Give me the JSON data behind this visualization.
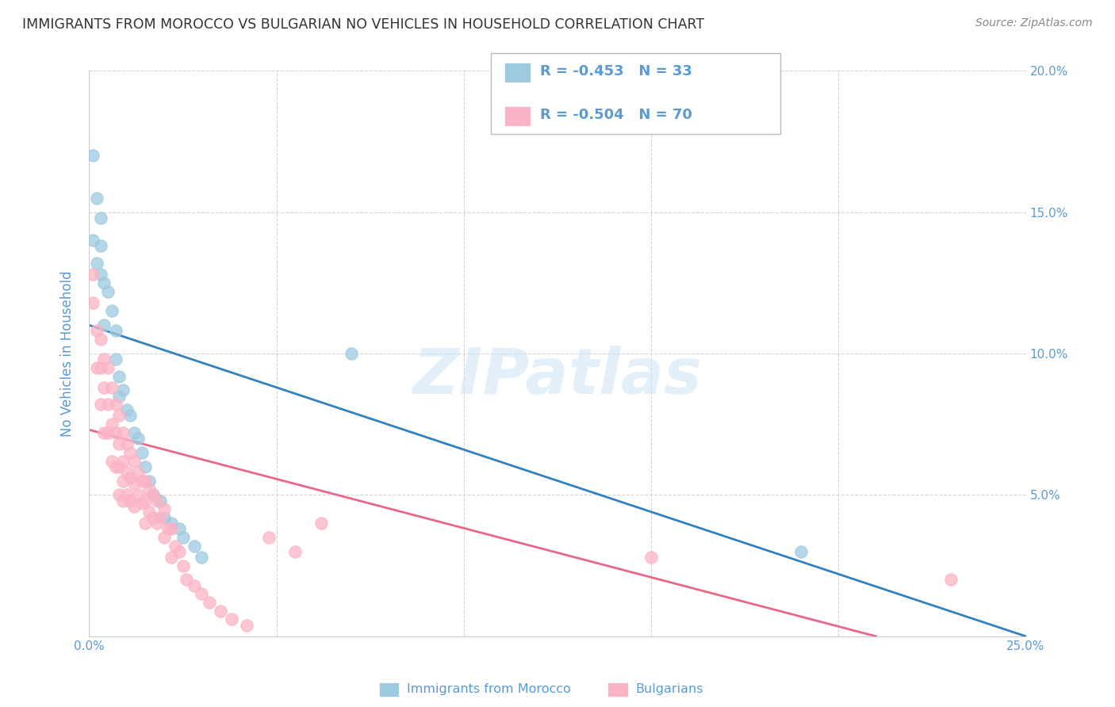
{
  "title": "IMMIGRANTS FROM MOROCCO VS BULGARIAN NO VEHICLES IN HOUSEHOLD CORRELATION CHART",
  "source": "Source: ZipAtlas.com",
  "ylabel": "No Vehicles in Household",
  "xlim": [
    0.0,
    0.25
  ],
  "ylim": [
    0.0,
    0.2
  ],
  "x_ticks": [
    0.0,
    0.05,
    0.1,
    0.15,
    0.2,
    0.25
  ],
  "y_ticks": [
    0.0,
    0.05,
    0.1,
    0.15,
    0.2
  ],
  "x_tick_labels": [
    "0.0%",
    "",
    "",
    "",
    "",
    "25.0%"
  ],
  "y_tick_labels_right": [
    "",
    "5.0%",
    "10.0%",
    "15.0%",
    "20.0%"
  ],
  "color_blue": "#9ecae1",
  "color_pink": "#fbb4c5",
  "color_line_blue": "#3182bd",
  "color_line_pink": "#e8688a",
  "legend_R1": "R = -0.453",
  "legend_N1": "N = 33",
  "legend_R2": "R = -0.504",
  "legend_N2": "N = 70",
  "label1": "Immigrants from Morocco",
  "label2": "Bulgarians",
  "blue_scatter_x": [
    0.001,
    0.001,
    0.002,
    0.002,
    0.003,
    0.003,
    0.003,
    0.004,
    0.004,
    0.005,
    0.006,
    0.007,
    0.007,
    0.008,
    0.008,
    0.009,
    0.01,
    0.011,
    0.012,
    0.013,
    0.014,
    0.015,
    0.016,
    0.017,
    0.019,
    0.02,
    0.022,
    0.024,
    0.025,
    0.028,
    0.03,
    0.07,
    0.19
  ],
  "blue_scatter_y": [
    0.17,
    0.14,
    0.155,
    0.132,
    0.148,
    0.138,
    0.128,
    0.125,
    0.11,
    0.122,
    0.115,
    0.108,
    0.098,
    0.092,
    0.085,
    0.087,
    0.08,
    0.078,
    0.072,
    0.07,
    0.065,
    0.06,
    0.055,
    0.05,
    0.048,
    0.042,
    0.04,
    0.038,
    0.035,
    0.032,
    0.028,
    0.1,
    0.03
  ],
  "pink_scatter_x": [
    0.001,
    0.001,
    0.002,
    0.002,
    0.003,
    0.003,
    0.003,
    0.004,
    0.004,
    0.004,
    0.005,
    0.005,
    0.005,
    0.006,
    0.006,
    0.006,
    0.007,
    0.007,
    0.007,
    0.008,
    0.008,
    0.008,
    0.008,
    0.009,
    0.009,
    0.009,
    0.009,
    0.01,
    0.01,
    0.01,
    0.011,
    0.011,
    0.011,
    0.012,
    0.012,
    0.012,
    0.013,
    0.013,
    0.014,
    0.014,
    0.015,
    0.015,
    0.015,
    0.016,
    0.016,
    0.017,
    0.017,
    0.018,
    0.018,
    0.019,
    0.02,
    0.02,
    0.021,
    0.022,
    0.022,
    0.023,
    0.024,
    0.025,
    0.026,
    0.028,
    0.03,
    0.032,
    0.035,
    0.038,
    0.042,
    0.048,
    0.055,
    0.062,
    0.15,
    0.23
  ],
  "pink_scatter_y": [
    0.128,
    0.118,
    0.108,
    0.095,
    0.105,
    0.095,
    0.082,
    0.098,
    0.088,
    0.072,
    0.095,
    0.082,
    0.072,
    0.088,
    0.075,
    0.062,
    0.082,
    0.072,
    0.06,
    0.078,
    0.068,
    0.06,
    0.05,
    0.072,
    0.062,
    0.055,
    0.048,
    0.068,
    0.058,
    0.05,
    0.065,
    0.056,
    0.048,
    0.062,
    0.054,
    0.046,
    0.058,
    0.05,
    0.055,
    0.047,
    0.055,
    0.048,
    0.04,
    0.052,
    0.044,
    0.05,
    0.042,
    0.048,
    0.04,
    0.042,
    0.045,
    0.035,
    0.038,
    0.038,
    0.028,
    0.032,
    0.03,
    0.025,
    0.02,
    0.018,
    0.015,
    0.012,
    0.009,
    0.006,
    0.004,
    0.035,
    0.03,
    0.04,
    0.028,
    0.02
  ],
  "blue_line_x": [
    0.0,
    0.25
  ],
  "blue_line_y": [
    0.11,
    0.0
  ],
  "pink_line_x": [
    0.0,
    0.21
  ],
  "pink_line_y": [
    0.073,
    0.0
  ],
  "watermark": "ZIPatlas",
  "bg_color": "#ffffff",
  "grid_color": "#d0d0d0",
  "title_color": "#333333",
  "axis_label_color": "#5b9bd5",
  "tick_color": "#5b9bd5"
}
